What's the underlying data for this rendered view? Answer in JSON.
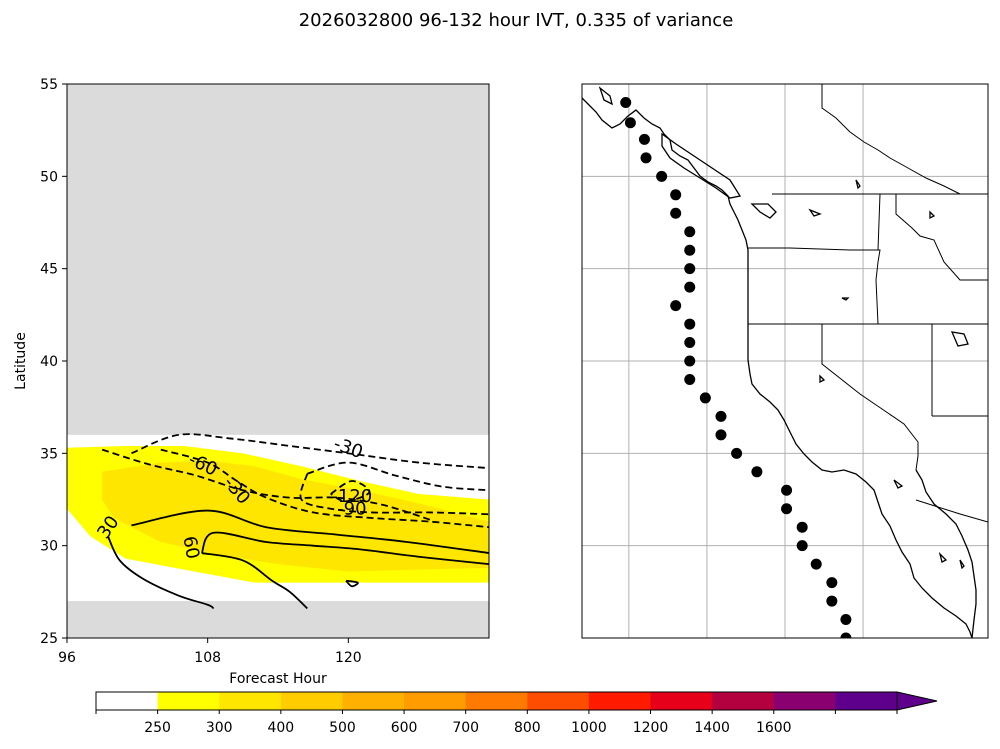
{
  "chart_data": [
    {
      "type": "contour",
      "title": "2026032800 96-132 hour IVT, 0.335 of variance",
      "xlabel": "Forecast Hour",
      "ylabel": "Latitude",
      "xlim": [
        96,
        132
      ],
      "ylim": [
        25,
        55
      ],
      "xticks": [
        "96",
        "108",
        "120"
      ],
      "yticks": [
        "25",
        "30",
        "35",
        "40",
        "45",
        "50",
        "55"
      ],
      "missing_data_color": "#dbdbdb",
      "valid_lat_range": [
        27,
        36
      ],
      "filled_ivt": [
        {
          "level": 250,
          "color": "#ffff00",
          "polygon": [
            [
              96,
              35.3
            ],
            [
              101,
              35.4
            ],
            [
              106,
              35.4
            ],
            [
              111,
              35.0
            ],
            [
              116,
              34.3
            ],
            [
              121,
              33.5
            ],
            [
              126,
              32.8
            ],
            [
              132,
              32.5
            ],
            [
              132,
              28.0
            ],
            [
              126,
              28.0
            ],
            [
              120,
              28.0
            ],
            [
              112,
              28.0
            ],
            [
              106,
              28.7
            ],
            [
              101,
              29.3
            ],
            [
              98,
              30.5
            ],
            [
              96,
              32.0
            ]
          ]
        },
        {
          "level": 300,
          "color": "#ffe600",
          "polygon": [
            [
              99,
              34.0
            ],
            [
              104,
              34.5
            ],
            [
              108,
              34.6
            ],
            [
              112,
              34.3
            ],
            [
              116,
              33.6
            ],
            [
              121,
              33.0
            ],
            [
              126,
              32.3
            ],
            [
              132,
              31.3
            ],
            [
              132,
              28.8
            ],
            [
              126,
              28.7
            ],
            [
              120,
              28.6
            ],
            [
              114,
              29.0
            ],
            [
              109,
              29.5
            ],
            [
              104,
              30.2
            ],
            [
              100,
              31.5
            ],
            [
              99,
              32.5
            ]
          ]
        }
      ],
      "contours": [
        {
          "value": "-30",
          "style": "dashed",
          "points": [
            [
              101.5,
              35.0
            ],
            [
              105.5,
              36.0
            ],
            [
              110,
              35.8
            ],
            [
              115,
              35.4
            ],
            [
              120,
              35.0
            ],
            [
              126,
              34.5
            ],
            [
              132,
              34.2
            ]
          ]
        },
        {
          "value": "-30",
          "style": "dashed",
          "points": [
            [
              99,
              35.2
            ],
            [
              103,
              34.4
            ],
            [
              107,
              33.8
            ],
            [
              111,
              33.0
            ],
            [
              115,
              32.6
            ],
            [
              119,
              32.6
            ],
            [
              123,
              32.2
            ],
            [
              127,
              31.4
            ]
          ]
        },
        {
          "value": "-60",
          "style": "dashed",
          "points": [
            [
              104,
              35.2
            ],
            [
              108,
              34.5
            ],
            [
              110.5,
              33.5
            ],
            [
              113,
              32.6
            ],
            [
              117,
              31.8
            ],
            [
              122,
              31.5
            ],
            [
              127,
              31.3
            ],
            [
              132,
              31.0
            ]
          ]
        },
        {
          "value": "-90",
          "style": "dashed",
          "points": [
            [
              116.5,
              33.9
            ],
            [
              120,
              34.5
            ],
            [
              124,
              33.8
            ],
            [
              128,
              33.2
            ],
            [
              132,
              33.0
            ]
          ]
        },
        {
          "value": "-90",
          "style": "dashed",
          "points": [
            [
              116.5,
              33.9
            ],
            [
              116,
              32.5
            ],
            [
              118.5,
              32.0
            ],
            [
              122,
              31.8
            ],
            [
              127,
              31.8
            ],
            [
              132,
              31.7
            ]
          ]
        },
        {
          "value": "-120",
          "style": "dashed",
          "points": [
            [
              118.5,
              32.8
            ],
            [
              120.3,
              33.5
            ],
            [
              121.8,
              32.9
            ],
            [
              119.8,
              32.4
            ],
            [
              118.5,
              32.8
            ]
          ]
        },
        {
          "value": "30",
          "style": "solid",
          "points": [
            [
              101.5,
              31.1
            ],
            [
              108,
              31.9
            ],
            [
              113,
              31.0
            ],
            [
              119,
              30.6
            ],
            [
              125,
              30.2
            ],
            [
              132,
              29.6
            ]
          ]
        },
        {
          "value": "30",
          "style": "solid",
          "points": [
            [
              99.5,
              30.5
            ],
            [
              100.5,
              29.2
            ],
            [
              102.5,
              28.2
            ],
            [
              105.5,
              27.3
            ],
            [
              108,
              26.8
            ],
            [
              108.5,
              26.6
            ]
          ]
        },
        {
          "value": "60",
          "style": "solid",
          "points": [
            [
              107.5,
              29.6
            ],
            [
              108.5,
              30.7
            ],
            [
              113,
              30.2
            ],
            [
              117,
              30.0
            ],
            [
              121,
              29.8
            ],
            [
              126,
              29.4
            ],
            [
              132,
              29.0
            ]
          ]
        },
        {
          "value": "60",
          "style": "solid",
          "points": [
            [
              107.5,
              29.6
            ],
            [
              111,
              29.2
            ],
            [
              113.5,
              28.1
            ],
            [
              115,
              27.5
            ],
            [
              116.5,
              26.6
            ]
          ]
        },
        {
          "value": "",
          "style": "solid",
          "points": [
            [
              119.8,
              28.1
            ],
            [
              120.8,
              28.0
            ],
            [
              120.3,
              27.8
            ],
            [
              119.8,
              28.1
            ]
          ]
        }
      ],
      "contour_labels": [
        {
          "text": "-30",
          "x": 120.0,
          "y": 35.3,
          "rotate": 20
        },
        {
          "text": "-60",
          "x": 107.6,
          "y": 34.4,
          "rotate": 25
        },
        {
          "text": "-30",
          "x": 110.5,
          "y": 33.0,
          "rotate": 50
        },
        {
          "text": "-120",
          "x": 120.3,
          "y": 32.7,
          "rotate": 0
        },
        {
          "text": "-90",
          "x": 120.3,
          "y": 32.0,
          "rotate": 0
        },
        {
          "text": "30",
          "x": 99.5,
          "y": 31.0,
          "rotate": -55
        },
        {
          "text": "60",
          "x": 106.6,
          "y": 29.9,
          "rotate": 80
        }
      ]
    },
    {
      "type": "map",
      "description_lon_range": [
        -130,
        -104
      ],
      "lat_range": [
        25,
        55
      ],
      "gridlines_lon": [
        -127,
        -122,
        -117,
        -112
      ],
      "gridlines_lat": [
        30,
        35,
        40,
        45,
        50
      ],
      "station_points": [
        [
          -127.2,
          54
        ],
        [
          -126.9,
          52.9
        ],
        [
          -126.0,
          52
        ],
        [
          -125.9,
          51
        ],
        [
          -124.9,
          50
        ],
        [
          -124.0,
          49
        ],
        [
          -124.0,
          48
        ],
        [
          -123.1,
          47
        ],
        [
          -123.1,
          46
        ],
        [
          -123.1,
          45
        ],
        [
          -123.1,
          44
        ],
        [
          -124.0,
          43
        ],
        [
          -123.1,
          42
        ],
        [
          -123.1,
          41
        ],
        [
          -123.1,
          40
        ],
        [
          -123.1,
          39
        ],
        [
          -122.1,
          38
        ],
        [
          -121.1,
          37
        ],
        [
          -121.1,
          36
        ],
        [
          -120.1,
          35
        ],
        [
          -118.8,
          34
        ],
        [
          -116.9,
          33
        ],
        [
          -116.9,
          32
        ],
        [
          -115.9,
          31
        ],
        [
          -115.9,
          30
        ],
        [
          -115.0,
          29
        ],
        [
          -114.0,
          28
        ],
        [
          -114.0,
          27
        ],
        [
          -113.1,
          26
        ],
        [
          -113.1,
          25
        ]
      ]
    },
    {
      "type": "colorbar",
      "boundaries": [
        0,
        250,
        300,
        400,
        500,
        600,
        700,
        800,
        1000,
        1200,
        1400,
        1600,
        1800
      ],
      "tick_labels": [
        "250",
        "300",
        "400",
        "500",
        "600",
        "700",
        "800",
        "1000",
        "1200",
        "1400",
        "1600"
      ],
      "colors": [
        "#ffffff",
        "#ffff00",
        "#ffe600",
        "#ffcc00",
        "#ffb000",
        "#ff9c00",
        "#ff7a00",
        "#ff4d00",
        "#ff1a00",
        "#e6001a",
        "#b3003f",
        "#8a0070",
        "#5e008c"
      ],
      "extend_color": "#5e008c"
    }
  ]
}
